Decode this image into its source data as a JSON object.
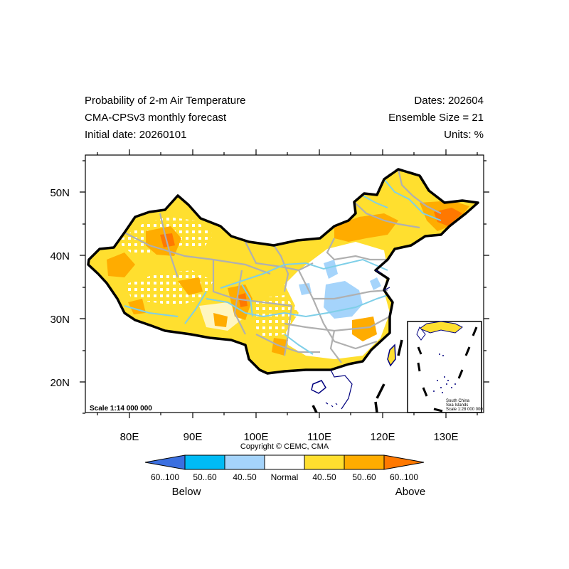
{
  "header": {
    "title_line1": "Probability of 2-m Air Temperature",
    "title_line2": "CMA-CPSv3 monthly forecast",
    "title_line3": "Initial date: 20260101",
    "dates": "Dates: 202604",
    "ensemble": "Ensemble Size = 21",
    "units": "Units: %"
  },
  "map": {
    "scale_main": "Scale 1:14 000 000",
    "inset_line1": "South China",
    "inset_line2": "Sea Islands",
    "inset_scale": "Scale 1:28 000 000",
    "copyright": "Copyright © CEMC, CMA",
    "x_ticks": [
      "80E",
      "90E",
      "100E",
      "110E",
      "120E",
      "130E"
    ],
    "y_ticks": [
      "20N",
      "30N",
      "40N",
      "50N"
    ]
  },
  "colorbar": {
    "labels": [
      "60..100",
      "50..60",
      "40..50",
      "Normal",
      "40..50",
      "50..60",
      "60..100"
    ],
    "below_label": "Below",
    "above_label": "Above",
    "colors": [
      "#3b6fe0",
      "#00bbf5",
      "#a5d4fb",
      "#ffffff",
      "#ffdf2f",
      "#ffac00",
      "#ff7800"
    ]
  },
  "colors": {
    "border": "#000000",
    "province_lines": "#b0b0b0",
    "rivers": "#7ecfe8",
    "coast": "#00007f"
  }
}
